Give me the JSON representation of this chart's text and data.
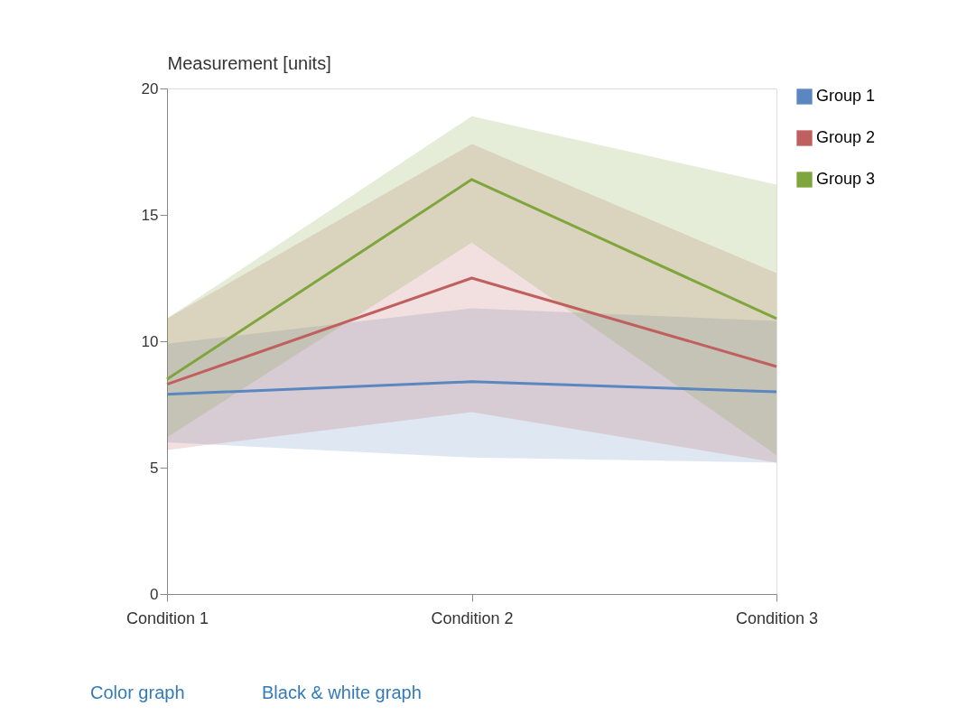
{
  "chart_data": {
    "type": "line",
    "ylabel": "Measurement [units]",
    "categories": [
      "Condition 1",
      "Condition 2",
      "Condition 3"
    ],
    "ylim": [
      0,
      20
    ],
    "yticks": [
      0,
      5,
      10,
      15,
      20
    ],
    "grid": false,
    "legend": "top right",
    "series": [
      {
        "name": "Group 1",
        "color": "#5b87c0",
        "values": [
          7.9,
          8.4,
          8.0
        ],
        "lower": [
          6.0,
          5.4,
          5.2
        ],
        "upper": [
          9.9,
          11.3,
          10.8
        ]
      },
      {
        "name": "Group 2",
        "color": "#c0605e",
        "values": [
          8.3,
          12.5,
          9.0
        ],
        "lower": [
          5.7,
          7.2,
          5.2
        ],
        "upper": [
          10.9,
          17.8,
          12.7
        ]
      },
      {
        "name": "Group 3",
        "color": "#7ea63c",
        "values": [
          8.5,
          16.4,
          10.9
        ],
        "lower": [
          6.2,
          13.9,
          5.5
        ],
        "upper": [
          10.9,
          18.9,
          16.2
        ]
      }
    ],
    "annotations": [
      "Color graph",
      "Black & white graph"
    ]
  }
}
